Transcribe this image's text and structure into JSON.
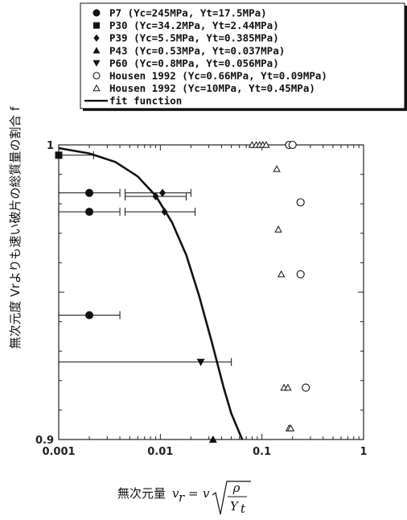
{
  "chart_data": {
    "type": "scatter",
    "x_scale": "log",
    "xlim": [
      0.001,
      1
    ],
    "ylim": [
      0.9,
      1
    ],
    "x_ticks": [
      "0.001",
      "0.01",
      "0.1",
      "1"
    ],
    "y_ticks": [
      "0.9",
      "1"
    ],
    "ylabel": "無次元度 Vrよりも速い破片の総質量の割合 f",
    "xlabel_prefix": "無次元量",
    "xlabel_formula": "v_r = v √(ρ / Y_t)",
    "xlabel_parts": {
      "lhs": "v",
      "lhs_sub": "r",
      "eq": "=",
      "v": "v",
      "num": "ρ",
      "den": "Y",
      "den_sub": "t"
    },
    "legend_position": "top",
    "series": [
      {
        "name": "P7 (Yc=245MPa, Yt=17.5MPa)",
        "marker": "circle-filled",
        "points": [
          {
            "x": 0.002,
            "y": 0.9837,
            "xerr": [
              0.001,
              0.004
            ]
          },
          {
            "x": 0.002,
            "y": 0.9773,
            "xerr": [
              0.001,
              0.004
            ]
          },
          {
            "x": 0.002,
            "y": 0.9422,
            "xerr": [
              0.001,
              0.004
            ]
          }
        ]
      },
      {
        "name": "P30 (Yc=34.2MPa, Yt=2.44MPa)",
        "marker": "square-filled",
        "points": [
          {
            "x": 0.001,
            "y": 0.9965,
            "xerr": [
              0.001,
              0.0022
            ]
          }
        ]
      },
      {
        "name": "P39 (Yc=5.5MPa, Yt=0.385MPa)",
        "marker": "diamond-filled",
        "points": [
          {
            "x": 0.0105,
            "y": 0.9837,
            "xerr": [
              0.0045,
              0.02
            ]
          },
          {
            "x": 0.009,
            "y": 0.9825,
            "xerr": [
              0.0045,
              0.018
            ]
          },
          {
            "x": 0.011,
            "y": 0.9773,
            "xerr": [
              0.0045,
              0.022
            ]
          }
        ]
      },
      {
        "name": "P43 (Yc=0.53MPa, Yt=0.037MPa)",
        "marker": "triangle-up-filled",
        "points": [
          {
            "x": 0.033,
            "y": 0.9
          }
        ]
      },
      {
        "name": "P60 (Yc=0.8MPa, Yt=0.056MPa)",
        "marker": "triangle-down-filled",
        "points": [
          {
            "x": 0.025,
            "y": 0.9263,
            "xerr": [
              0.001,
              0.05
            ]
          }
        ]
      },
      {
        "name": "Housen 1992 (Yc=0.66MPa, Yt=0.09MPa)",
        "marker": "circle-open",
        "points": [
          {
            "x": 0.185,
            "y": 1.0
          },
          {
            "x": 0.2,
            "y": 1.0
          },
          {
            "x": 0.24,
            "y": 0.9805
          },
          {
            "x": 0.24,
            "y": 0.9561
          },
          {
            "x": 0.27,
            "y": 0.9176
          }
        ]
      },
      {
        "name": "Housen 1992 (Yc=10MPa, Yt=0.45MPa)",
        "marker": "triangle-up-open",
        "points": [
          {
            "x": 0.08,
            "y": 1.0
          },
          {
            "x": 0.088,
            "y": 1.0
          },
          {
            "x": 0.095,
            "y": 1.0
          },
          {
            "x": 0.102,
            "y": 1.0
          },
          {
            "x": 0.11,
            "y": 1.0
          },
          {
            "x": 0.14,
            "y": 0.9918
          },
          {
            "x": 0.145,
            "y": 0.9713
          },
          {
            "x": 0.155,
            "y": 0.9561
          },
          {
            "x": 0.165,
            "y": 0.9176
          },
          {
            "x": 0.18,
            "y": 0.9176
          },
          {
            "x": 0.185,
            "y": 0.9038
          },
          {
            "x": 0.192,
            "y": 0.9038
          }
        ]
      }
    ],
    "fit": {
      "name": "fit function",
      "points": [
        {
          "x": 0.001,
          "y": 0.9989
        },
        {
          "x": 0.002,
          "y": 0.9971
        },
        {
          "x": 0.0036,
          "y": 0.9942
        },
        {
          "x": 0.006,
          "y": 0.9893
        },
        {
          "x": 0.009,
          "y": 0.9827
        },
        {
          "x": 0.013,
          "y": 0.9738
        },
        {
          "x": 0.018,
          "y": 0.9626
        },
        {
          "x": 0.024,
          "y": 0.9489
        },
        {
          "x": 0.032,
          "y": 0.9332
        },
        {
          "x": 0.042,
          "y": 0.9176
        },
        {
          "x": 0.05,
          "y": 0.9088
        },
        {
          "x": 0.06,
          "y": 0.9023
        },
        {
          "x": 0.064,
          "y": 0.9
        }
      ]
    }
  }
}
